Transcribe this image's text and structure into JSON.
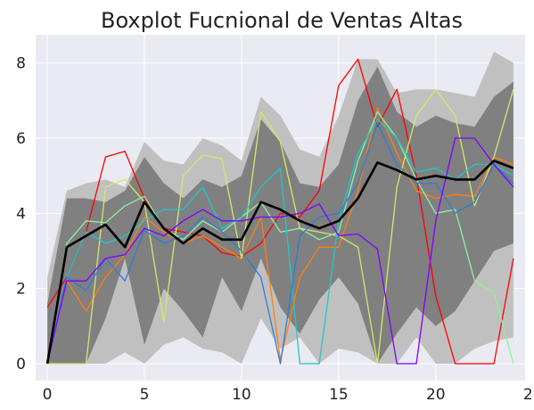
{
  "chart_data": {
    "type": "line",
    "title": "Boxplot Fucnional de Ventas Altas",
    "xlabel": "",
    "ylabel": "",
    "xlim": [
      -0.6,
      24.6
    ],
    "ylim": [
      -0.45,
      8.75
    ],
    "xticks": [
      0,
      5,
      10,
      15,
      20,
      25
    ],
    "yticks": [
      0,
      2,
      4,
      6,
      8
    ],
    "grid": true,
    "background": "#eaeaf2",
    "x": [
      0,
      1,
      2,
      3,
      4,
      5,
      6,
      7,
      8,
      9,
      10,
      11,
      12,
      13,
      14,
      15,
      16,
      17,
      18,
      19,
      20,
      21,
      22,
      23,
      24
    ],
    "outer_band": {
      "color": "#c0c0c0",
      "upper": [
        2.3,
        4.6,
        4.8,
        4.9,
        4.7,
        5.9,
        5.4,
        5.3,
        6.0,
        5.8,
        5.4,
        7.1,
        6.6,
        5.7,
        5.5,
        6.6,
        8.1,
        8.1,
        7.2,
        7.3,
        7.3,
        7.2,
        7.1,
        8.3,
        8.0
      ],
      "lower": [
        0,
        0,
        0,
        0,
        0.3,
        0,
        0.5,
        0.7,
        0.4,
        0.3,
        0,
        1.2,
        0.4,
        0.7,
        0,
        0.4,
        0.3,
        0,
        0,
        0.7,
        0,
        0,
        0.4,
        0.6,
        0.7
      ]
    },
    "inner_band": {
      "color": "#808080",
      "upper": [
        1.6,
        4.4,
        4.4,
        4.3,
        4.6,
        5.5,
        4.8,
        4.4,
        4.9,
        4.7,
        5.0,
        6.5,
        5.9,
        4.8,
        4.7,
        5.3,
        7.0,
        7.9,
        6.7,
        6.3,
        6.6,
        6.4,
        6.3,
        7.1,
        7.5
      ],
      "lower": [
        0,
        0,
        0,
        1.2,
        2.8,
        0.5,
        2.0,
        1.4,
        0.7,
        2.3,
        1.4,
        2.8,
        1.5,
        0.8,
        1.7,
        2.3,
        1.6,
        0,
        0.8,
        1.5,
        1.0,
        1.4,
        2.2,
        3.0,
        3.2
      ]
    },
    "median": {
      "color": "#000000",
      "values": [
        0,
        3.1,
        3.4,
        3.7,
        3.1,
        4.3,
        3.6,
        3.2,
        3.6,
        3.3,
        3.3,
        4.3,
        4.1,
        3.8,
        3.6,
        3.8,
        4.4,
        5.35,
        5.15,
        4.9,
        5.0,
        4.9,
        4.9,
        5.4,
        5.2
      ]
    },
    "series": [
      {
        "color": "#ff0000",
        "values": [
          1.5,
          2.3,
          3.5,
          5.5,
          5.65,
          4.4,
          3.6,
          3.5,
          3.4,
          2.95,
          2.85,
          3.2,
          4.0,
          3.9,
          4.6,
          7.4,
          8.1,
          6.3,
          7.3,
          5.0,
          1.8,
          0,
          0,
          0,
          2.8
        ]
      },
      {
        "color": "#ff7f0e",
        "values": [
          0,
          2.2,
          1.4,
          2.3,
          2.9,
          3.9,
          3.5,
          3.2,
          3.4,
          3.1,
          2.8,
          3.9,
          0.1,
          2.3,
          3.1,
          3.1,
          4.6,
          6.8,
          5.6,
          4.6,
          4.4,
          4.5,
          4.45,
          5.5,
          5.3
        ]
      },
      {
        "color": "#d5e86b",
        "values": [
          0,
          0,
          0,
          4.7,
          4.9,
          4.3,
          1.1,
          5.0,
          5.55,
          5.45,
          2.8,
          6.7,
          5.9,
          3.6,
          3.5,
          3.4,
          3.1,
          0,
          4.7,
          6.6,
          7.3,
          6.6,
          4.2,
          5.5,
          7.3
        ]
      },
      {
        "color": "#90f0a0",
        "values": [
          0,
          3.2,
          3.8,
          3.75,
          4.2,
          4.45,
          3.6,
          3.3,
          3.8,
          3.5,
          3.9,
          4.3,
          3.5,
          3.6,
          3.3,
          3.5,
          5.4,
          6.7,
          6.0,
          4.9,
          4.0,
          4.1,
          2.2,
          1.9,
          0
        ]
      },
      {
        "color": "#1ec8c8",
        "values": [
          0,
          2.3,
          3.5,
          3.2,
          3.4,
          3.8,
          4.1,
          4.1,
          4.7,
          3.6,
          3.9,
          4.7,
          5.2,
          0,
          0,
          3.8,
          5.6,
          6.5,
          6.0,
          5.1,
          5.2,
          4.9,
          5.3,
          5.3,
          5.0
        ]
      },
      {
        "color": "#2f7bdb",
        "values": [
          0,
          2.3,
          1.95,
          2.8,
          2.2,
          3.55,
          3.2,
          3.4,
          3.9,
          3.5,
          3.0,
          2.3,
          0,
          3.4,
          3.9,
          4.0,
          4.8,
          6.4,
          5.3,
          4.8,
          4.8,
          4.0,
          4.3,
          5.3,
          4.8
        ]
      },
      {
        "color": "#7f00ff",
        "values": [
          0,
          2.2,
          2.2,
          2.8,
          2.9,
          3.6,
          3.4,
          3.8,
          4.1,
          3.8,
          3.8,
          3.9,
          3.9,
          4.0,
          4.25,
          3.4,
          3.45,
          3.05,
          0,
          0,
          3.8,
          6.0,
          6.0,
          5.3,
          4.7
        ]
      }
    ]
  }
}
